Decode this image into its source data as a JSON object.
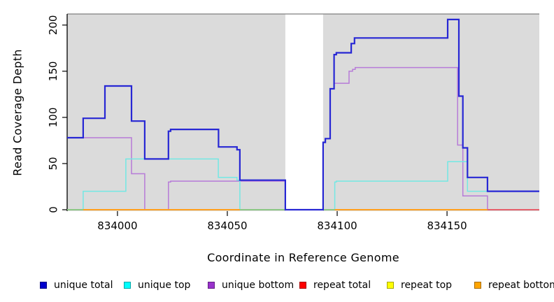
{
  "chart_data": {
    "type": "line",
    "subtype": "step-coverage-plot",
    "title": "",
    "xlabel": "Coordinate in Reference Genome",
    "ylabel": "Read Coverage Depth",
    "xlim": [
      833977.1,
      834192.0
    ],
    "ylim": [
      0,
      212
    ],
    "grid": false,
    "legend_position": "bottom",
    "panel_bg": "#DBDBDB",
    "panel_border_top": "#7F7F7F",
    "axis_color": "#000000",
    "x_ticks": [
      {
        "value": 834000,
        "label": "834000"
      },
      {
        "value": 834050,
        "label": "834050"
      },
      {
        "value": 834100,
        "label": "834100"
      },
      {
        "value": 834150,
        "label": "834150"
      }
    ],
    "y_ticks": [
      {
        "value": 0,
        "label": "0"
      },
      {
        "value": 50,
        "label": "50"
      },
      {
        "value": 100,
        "label": "100"
      },
      {
        "value": 150,
        "label": "150"
      },
      {
        "value": 200,
        "label": "200"
      }
    ],
    "gap_region": {
      "from": 834076.4,
      "to": 834093.6,
      "color": "#FFFFFF"
    },
    "series": [
      {
        "name": "repeat total",
        "color": "#E60000",
        "width": 1.5,
        "points": [
          [
            833977.1,
            0
          ]
        ]
      },
      {
        "name": "repeat top",
        "color": "#FFFF00",
        "width": 1.5,
        "points": [
          [
            833977.1,
            0
          ]
        ]
      },
      {
        "name": "unique bottom",
        "color": "#B77BD8",
        "width": 1.5,
        "points": [
          [
            833977.1,
            78
          ],
          [
            834006.4,
            39
          ],
          [
            834012.4,
            0
          ],
          [
            834023.2,
            30
          ],
          [
            834024.2,
            31
          ],
          [
            834076.4,
            0
          ],
          [
            834093.6,
            73
          ],
          [
            834094.6,
            77
          ],
          [
            834096.8,
            131
          ],
          [
            834098.6,
            137
          ],
          [
            834105.4,
            150
          ],
          [
            834107.0,
            152
          ],
          [
            834108.2,
            154
          ],
          [
            834154.8,
            70
          ],
          [
            834157.2,
            15
          ],
          [
            834168.4,
            0
          ]
        ]
      },
      {
        "name": "unique top",
        "color": "#73E8E4",
        "width": 1.5,
        "points": [
          [
            833977.1,
            0
          ],
          [
            833984.4,
            20
          ],
          [
            834003.8,
            55
          ],
          [
            834045.9,
            35
          ],
          [
            834054.4,
            32
          ],
          [
            834055.7,
            0
          ],
          [
            834098.9,
            30
          ],
          [
            834099.6,
            31
          ],
          [
            834150.3,
            52
          ],
          [
            834159.3,
            20
          ]
        ]
      },
      {
        "name": "repeat bottom",
        "color": "#FFA01E",
        "width": 2,
        "points": [
          [
            833977.1,
            0
          ]
        ]
      },
      {
        "name": "unique-top-at-zero-blend",
        "color": "#7DCE96",
        "width": 1.8,
        "blend": true,
        "segments": [
          [
            833977.1,
            833984.4
          ],
          [
            834055.7,
            834076.4
          ],
          [
            834093.6,
            834098.9
          ]
        ]
      },
      {
        "name": "unique-bottom-at-zero-blend",
        "color": "#DE4A85",
        "width": 1.5,
        "blend": true,
        "segments": [
          [
            834168.4,
            834192.0
          ]
        ]
      },
      {
        "name": "unique total",
        "color": "#2727D4",
        "width": 2.2,
        "points": [
          [
            833977.1,
            78
          ],
          [
            833984.4,
            99
          ],
          [
            833994.3,
            134
          ],
          [
            834006.4,
            96
          ],
          [
            834012.4,
            55
          ],
          [
            834023.2,
            85
          ],
          [
            834024.2,
            87
          ],
          [
            834046.0,
            68
          ],
          [
            834054.4,
            65
          ],
          [
            834055.7,
            32
          ],
          [
            834076.4,
            0
          ],
          [
            834093.6,
            73
          ],
          [
            834094.6,
            77
          ],
          [
            834096.8,
            131
          ],
          [
            834098.6,
            168
          ],
          [
            834099.6,
            170
          ],
          [
            834106.4,
            180
          ],
          [
            834107.9,
            186
          ],
          [
            834150.3,
            206
          ],
          [
            834155.4,
            123
          ],
          [
            834157.2,
            67
          ],
          [
            834159.3,
            35
          ],
          [
            834168.4,
            20
          ]
        ]
      }
    ]
  },
  "legend": {
    "items": [
      {
        "label": "unique total",
        "color": "#0000CD"
      },
      {
        "label": "unique top",
        "color": "#00FFFF"
      },
      {
        "label": "unique bottom",
        "color": "#9932CC"
      },
      {
        "label": "repeat total",
        "color": "#FF0000"
      },
      {
        "label": "repeat top",
        "color": "#FFFF00"
      },
      {
        "label": "repeat bottom",
        "color": "#FFA500"
      }
    ]
  }
}
